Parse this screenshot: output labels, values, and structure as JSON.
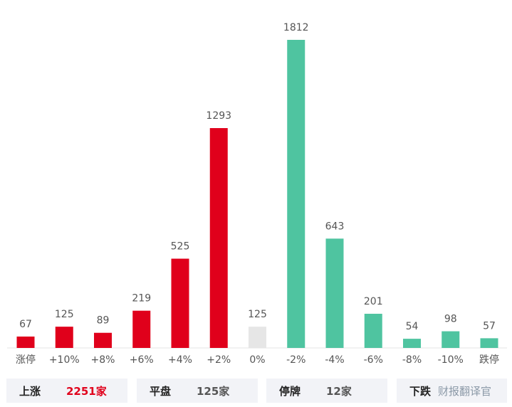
{
  "chart_data": {
    "type": "bar",
    "categories": [
      "涨停",
      "+10%",
      "+8%",
      "+6%",
      "+4%",
      "+2%",
      "0%",
      "-2%",
      "-4%",
      "-6%",
      "-8%",
      "-10%",
      "跌停"
    ],
    "values": [
      67,
      125,
      89,
      219,
      525,
      1293,
      125,
      1812,
      643,
      201,
      54,
      98,
      57
    ],
    "bar_colors": [
      "#e0001b",
      "#e0001b",
      "#e0001b",
      "#e0001b",
      "#e0001b",
      "#e0001b",
      "#e6e6e6",
      "#4fc4a0",
      "#4fc4a0",
      "#4fc4a0",
      "#4fc4a0",
      "#4fc4a0",
      "#4fc4a0"
    ],
    "ylim": [
      0,
      1812
    ],
    "grid": false,
    "legend": "none"
  },
  "summary": {
    "up": {
      "label": "上涨",
      "value": "2251家",
      "color": "#e0001b"
    },
    "flat": {
      "label": "平盘",
      "value": "125家",
      "color": "#555555"
    },
    "suspended": {
      "label": "停牌",
      "value": "12家",
      "color": "#555555"
    },
    "down": {
      "label": "下跌",
      "value": "",
      "color": "#4fc4a0"
    }
  },
  "watermark": "财报翻译官"
}
